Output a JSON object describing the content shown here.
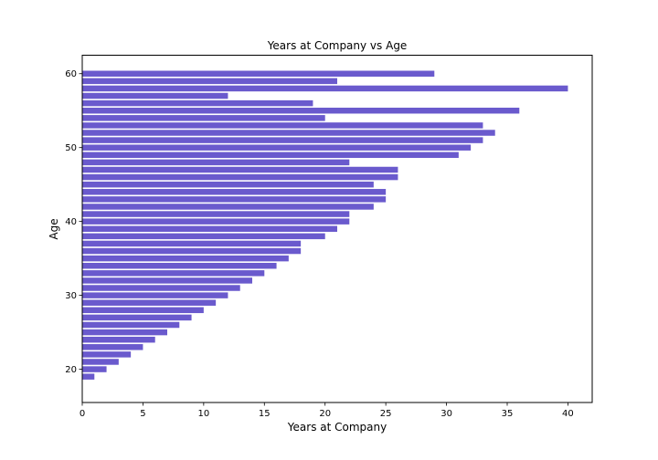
{
  "chart_data": {
    "type": "bar",
    "orientation": "horizontal",
    "title": "Years at Company vs Age",
    "xlabel": "Years at Company",
    "ylabel": "Age",
    "bar_color": "#6a5acd",
    "xlim": [
      0,
      42
    ],
    "ylim": [
      15.5,
      62.5
    ],
    "xticks": [
      0,
      5,
      10,
      15,
      20,
      25,
      30,
      35,
      40
    ],
    "yticks": [
      20,
      30,
      40,
      50,
      60
    ],
    "grid": false,
    "categories": [
      19,
      20,
      21,
      22,
      23,
      24,
      25,
      26,
      27,
      28,
      29,
      30,
      31,
      32,
      33,
      34,
      35,
      36,
      37,
      38,
      39,
      40,
      41,
      42,
      43,
      44,
      45,
      46,
      47,
      48,
      49,
      50,
      51,
      52,
      53,
      54,
      55,
      56,
      57,
      58,
      59,
      60
    ],
    "values": [
      1,
      2,
      3,
      4,
      5,
      6,
      7,
      8,
      9,
      10,
      11,
      12,
      13,
      14,
      15,
      16,
      17,
      18,
      18,
      20,
      21,
      22,
      22,
      24,
      25,
      25,
      24,
      26,
      26,
      22,
      31,
      32,
      33,
      34,
      33,
      20,
      36,
      19,
      12,
      40,
      21,
      29
    ]
  }
}
